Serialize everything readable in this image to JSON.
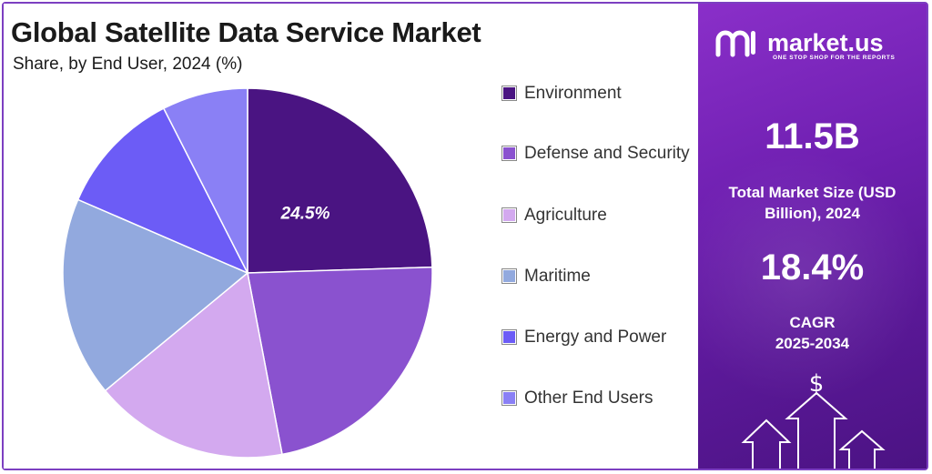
{
  "title": "Global Satellite Data Service Market",
  "subtitle": "Share, by End User, 2024 (%)",
  "chart_data": {
    "type": "pie",
    "title": "Global Satellite Data Service Market",
    "subtitle": "Share, by End User, 2024 (%)",
    "categories": [
      "Environment",
      "Defense and Security",
      "Agriculture",
      "Maritime",
      "Energy and Power",
      "Other End Users"
    ],
    "values": [
      24.5,
      22.5,
      17.0,
      17.5,
      11.0,
      7.5
    ],
    "colors": [
      "#4a1482",
      "#8a52cf",
      "#d3a9ef",
      "#92a9de",
      "#6c5cf6",
      "#8a80f5"
    ],
    "data_labels": [
      "24.5%",
      null,
      null,
      null,
      null,
      null
    ],
    "legend_placement": "right"
  },
  "legend": [
    {
      "label": "Environment",
      "color": "#4a1482"
    },
    {
      "label": "Defense and Security",
      "color": "#8a52cf"
    },
    {
      "label": "Agriculture",
      "color": "#d3a9ef"
    },
    {
      "label": "Maritime",
      "color": "#92a9de"
    },
    {
      "label": "Energy and Power",
      "color": "#6c5cf6"
    },
    {
      "label": "Other End Users",
      "color": "#8a80f5"
    }
  ],
  "brand": {
    "name": "market.us",
    "tagline": "ONE STOP SHOP FOR THE REPORTS"
  },
  "stats": {
    "market_size_value": "11.5B",
    "market_size_label": "Total Market Size (USD Billion), 2024",
    "cagr_value": "18.4%",
    "cagr_label": "CAGR",
    "cagr_period": "2025-2034"
  },
  "icons": [
    "dollar-icon",
    "up-arrow-icon"
  ]
}
